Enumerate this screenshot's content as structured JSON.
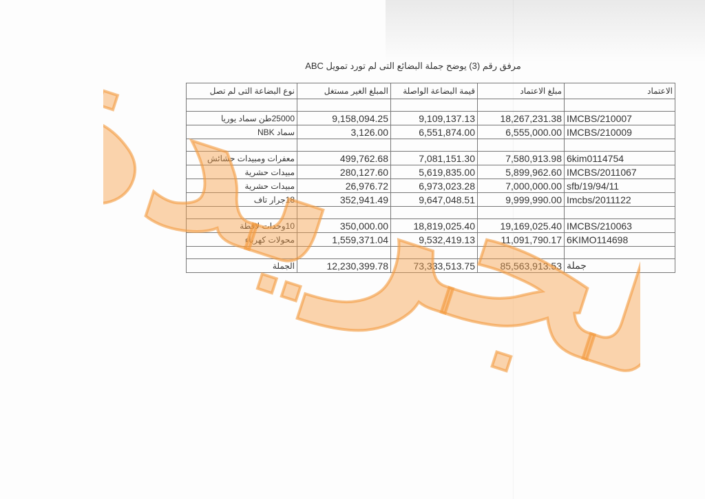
{
  "title": "مرفق رقم (3) يوضح جملة البضائع التى لم تورد تمويل ABC",
  "watermark": "الجريدة",
  "watermark_color": "#f6a04a",
  "headers": [
    "الاعتماد",
    "مبلغ الاعتماد",
    "قيمة البضاعة الواصلة",
    "المبلغ الغير مستغل",
    "نوع البضاعة التى لم تصل"
  ],
  "rows": [
    [
      "",
      "",
      "",
      "",
      ""
    ],
    [
      "IMCBS/210007",
      "18,267,231.38",
      "9,109,137.13",
      "9,158,094.25",
      "25000طن سماد يوريا"
    ],
    [
      "IMCBS/210009",
      "6,555,000.00",
      "6,551,874.00",
      "3,126.00",
      "سماد NBK"
    ],
    [
      "",
      "",
      "",
      "",
      ""
    ],
    [
      "6kim0114754",
      "7,580,913.98",
      "7,081,151.30",
      "499,762.68",
      "معفرات ومبيدات حشائش"
    ],
    [
      "IMCBS/2011067",
      "5,899,962.60",
      "5,619,835.00",
      "280,127.60",
      "مبيدات حشرية"
    ],
    [
      "sfb/19/94/11",
      "7,000,000.00",
      "6,973,023.28",
      "26,976.72",
      "مبيدات حشرية"
    ],
    [
      "Imcbs/2011122",
      "9,999,990.00",
      "9,647,048.51",
      "352,941.49",
      "18جرار تاف"
    ],
    [
      "",
      "",
      "",
      "",
      ""
    ],
    [
      "IMCBS/210063",
      "19,169,025.40",
      "18,819,025.40",
      "350,000.00",
      "10وحدات لاقطة"
    ],
    [
      "6KIMO114698",
      "11,091,790.17",
      "9,532,419.13",
      "1,559,371.04",
      "محولات كهرباء"
    ],
    [
      "",
      "",
      "",
      "",
      ""
    ]
  ],
  "total": [
    "جملة",
    "85,563,913.53",
    "73,333,513.75",
    "12,230,399.78",
    "الجملة"
  ]
}
